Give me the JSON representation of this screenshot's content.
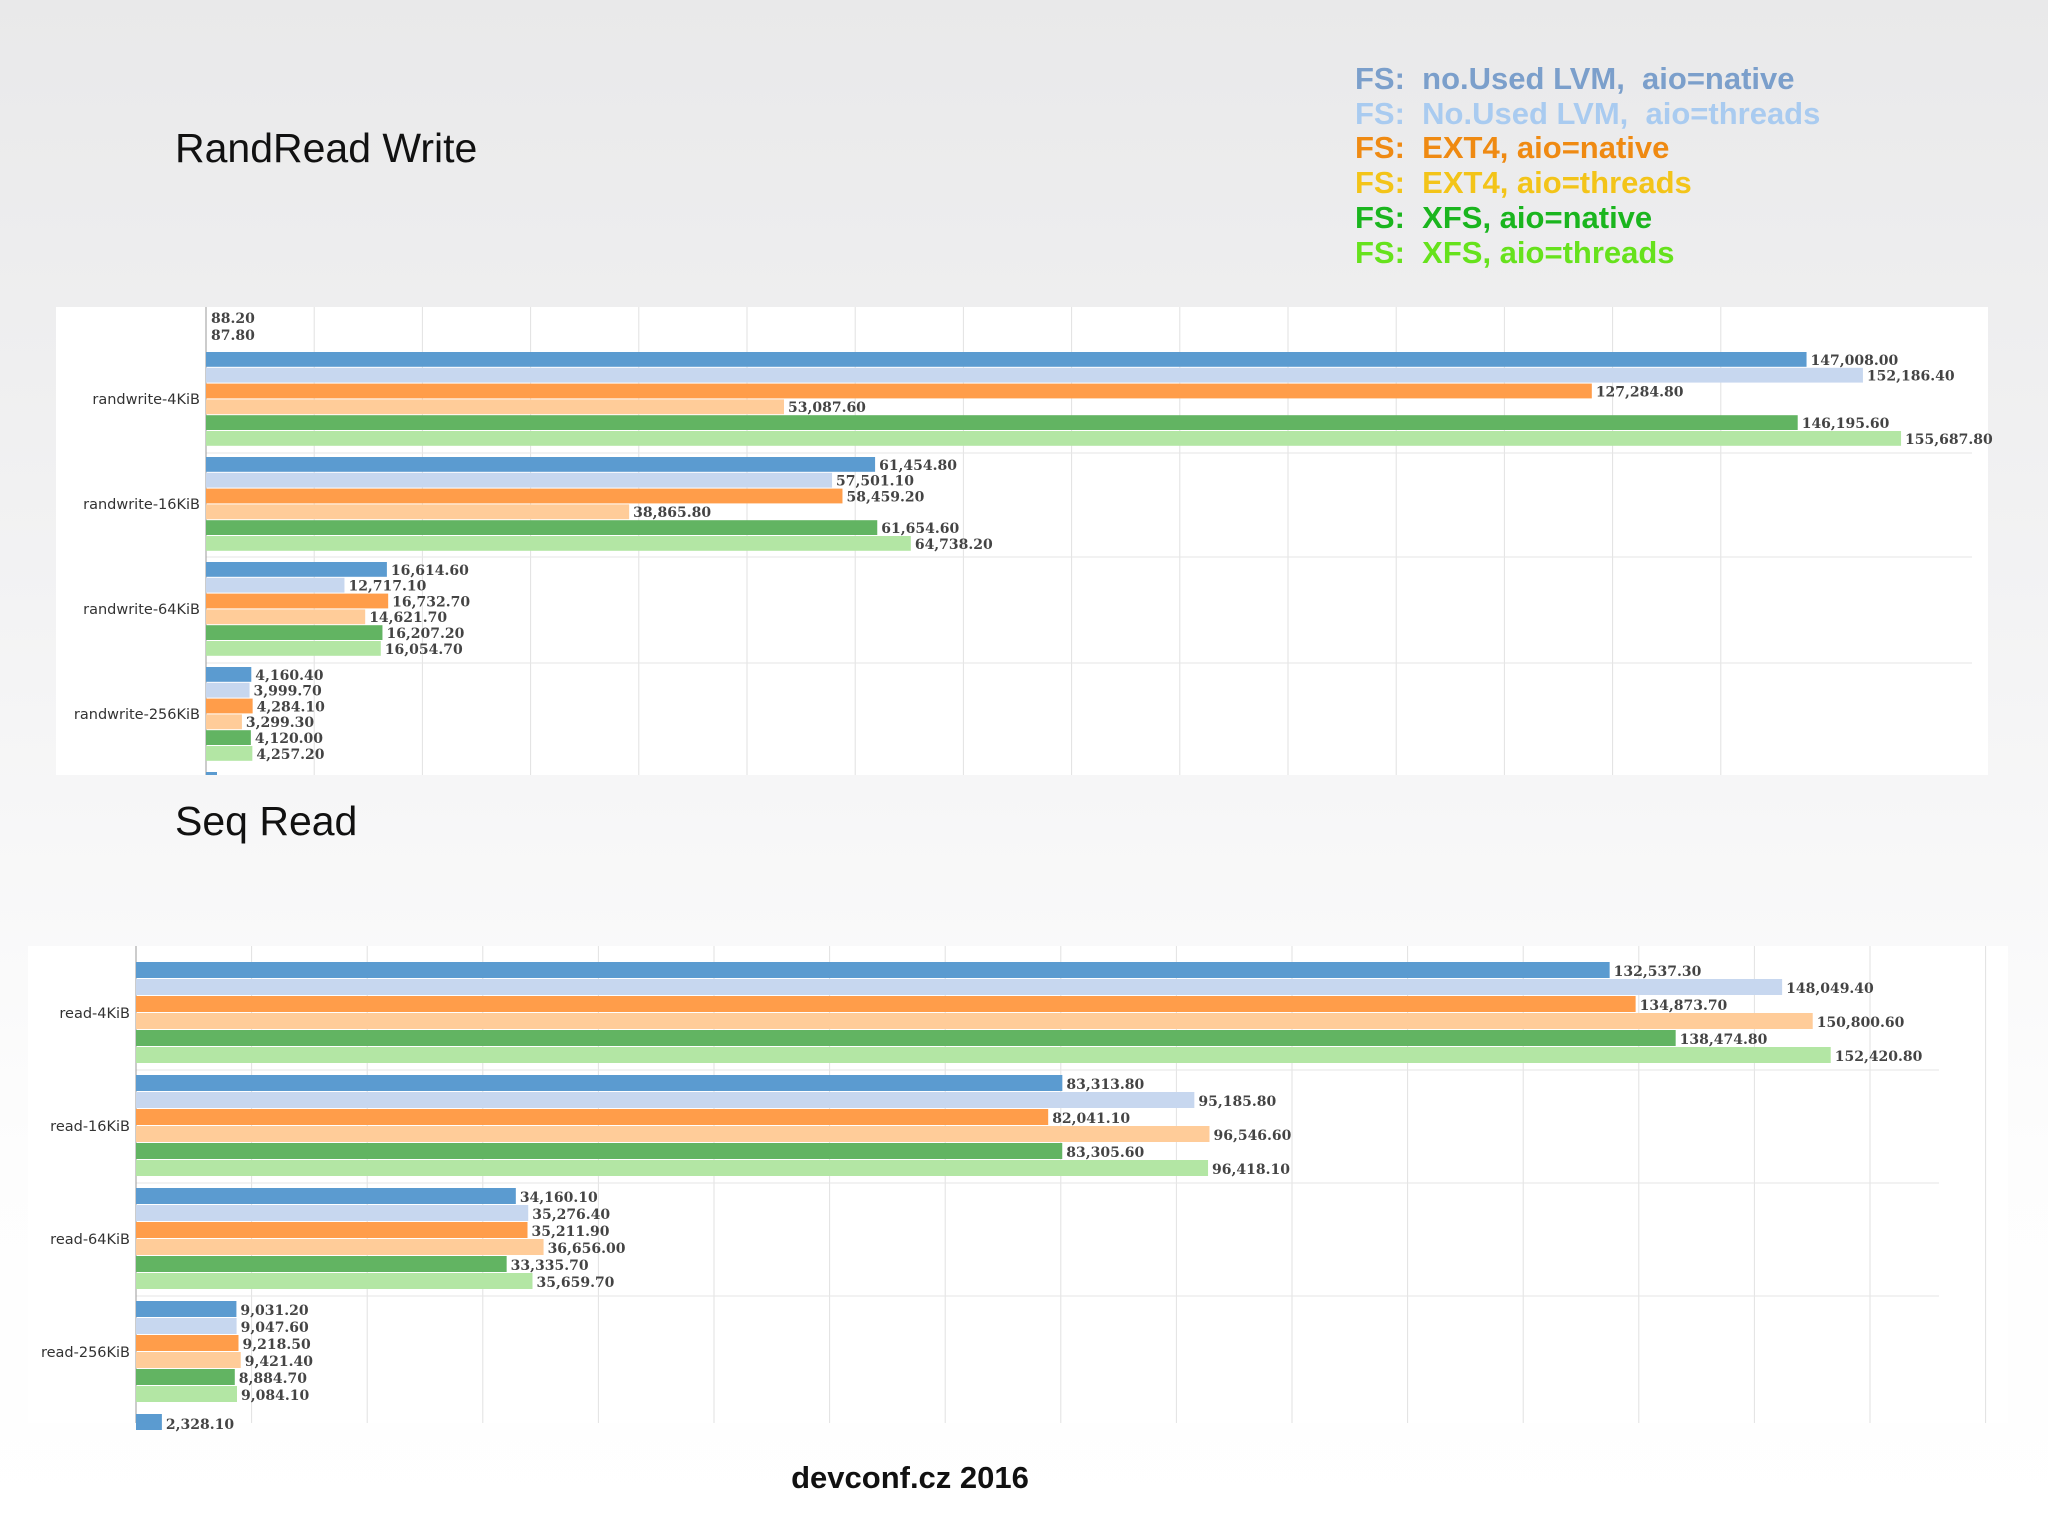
{
  "slide": {
    "title_top": "RandRead Write",
    "title_bottom": "Seq Read",
    "footer": "devconf.cz 2016"
  },
  "legend": [
    {
      "label": "FS:  no.Used LVM,  aio=native",
      "color": "#7b9fcb"
    },
    {
      "label": "FS:  No.Used LVM,  aio=threads",
      "color": "#a9cbf0"
    },
    {
      "label": "FS:  EXT4, aio=native",
      "color": "#ef8a12"
    },
    {
      "label": "FS:  EXT4, aio=threads",
      "color": "#f3c419"
    },
    {
      "label": "FS:  XFS, aio=native",
      "color": "#1ab51e"
    },
    {
      "label": "FS:  XFS, aio=threads",
      "color": "#66e21c"
    }
  ],
  "chart_data": [
    {
      "type": "bar",
      "orientation": "horizontal",
      "grid": true,
      "xlim": [
        0,
        160000
      ],
      "series_colors": [
        "#5b9bd0",
        "#c7d7ef",
        "#ff9d4a",
        "#ffcc99",
        "#62b462",
        "#b3e6a4"
      ],
      "partial_top_labels": [
        "88.20",
        "87.80"
      ],
      "categories": [
        "randwrite-4KiB",
        "randwrite-16KiB",
        "randwrite-64KiB",
        "randwrite-256KiB"
      ],
      "values": [
        [
          147008.0,
          152186.4,
          127284.8,
          53087.6,
          146195.6,
          155687.8
        ],
        [
          61454.8,
          57501.1,
          58459.2,
          38865.8,
          61654.6,
          64738.2
        ],
        [
          16614.6,
          12717.1,
          16732.7,
          14621.7,
          16207.2,
          16054.7
        ],
        [
          4160.4,
          3999.7,
          4284.1,
          3299.3,
          4120.0,
          4257.2
        ]
      ],
      "value_labels": [
        [
          "147,008.00",
          "152,186.40",
          "127,284.80",
          "53,087.60",
          "146,195.60",
          "155,687.80"
        ],
        [
          "61,454.80",
          "57,501.10",
          "58,459.20",
          "38,865.80",
          "61,654.60",
          "64,738.20"
        ],
        [
          "16,614.60",
          "12,717.10",
          "16,732.70",
          "14,621.70",
          "16,207.20",
          "16,054.70"
        ],
        [
          "4,160.40",
          "3,999.70",
          "4,284.10",
          "3,299.30",
          "4,120.00",
          "4,257.20"
        ]
      ],
      "partial_bottom_values": []
    },
    {
      "type": "bar",
      "orientation": "horizontal",
      "grid": true,
      "xlim": [
        0,
        160000
      ],
      "series_colors": [
        "#5b9bd0",
        "#c7d7ef",
        "#ff9d4a",
        "#ffcc99",
        "#62b462",
        "#b3e6a4"
      ],
      "partial_top_labels": [],
      "categories": [
        "read-4KiB",
        "read-16KiB",
        "read-64KiB",
        "read-256KiB"
      ],
      "values": [
        [
          132537.3,
          148049.4,
          134873.7,
          150800.6,
          138474.8,
          152420.8
        ],
        [
          83313.8,
          95185.8,
          82041.1,
          96546.6,
          83305.6,
          96418.1
        ],
        [
          34160.1,
          35276.4,
          35211.9,
          36656.0,
          33335.7,
          35659.7
        ],
        [
          9031.2,
          9047.6,
          9218.5,
          9421.4,
          8884.7,
          9084.1
        ]
      ],
      "value_labels": [
        [
          "132,537.30",
          "148,049.40",
          "134,873.70",
          "150,800.60",
          "138,474.80",
          "152,420.80"
        ],
        [
          "83,313.80",
          "95,185.80",
          "82,041.10",
          "96,546.60",
          "83,305.60",
          "96,418.10"
        ],
        [
          "34,160.10",
          "35,276.40",
          "35,211.90",
          "36,656.00",
          "33,335.70",
          "35,659.70"
        ],
        [
          "9,031.20",
          "9,047.60",
          "9,218.50",
          "9,421.40",
          "8,884.70",
          "9,084.10"
        ]
      ],
      "partial_bottom_values": [
        2328.1
      ],
      "partial_bottom_labels": [
        "2,328.10"
      ]
    }
  ]
}
